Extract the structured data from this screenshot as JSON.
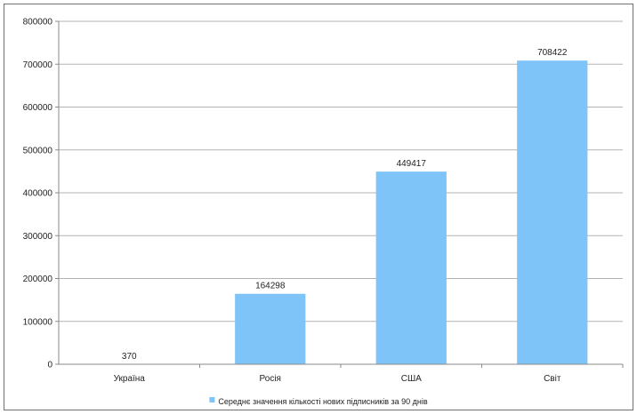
{
  "chart_data": {
    "type": "bar",
    "categories": [
      "Україна",
      "Росія",
      "США",
      "Світ"
    ],
    "series": [
      {
        "name": "Середнє значення кількості нових підписників за 90 днів",
        "values": [
          370,
          164298,
          449417,
          708422
        ]
      }
    ],
    "data_labels": [
      "370",
      "164298",
      "449417",
      "708422"
    ],
    "ylim": [
      0,
      800000
    ],
    "y_ticks": [
      0,
      100000,
      200000,
      300000,
      400000,
      500000,
      600000,
      700000,
      800000
    ],
    "y_tick_labels": [
      "0",
      "100000",
      "200000",
      "300000",
      "400000",
      "500000",
      "600000",
      "700000",
      "800000"
    ],
    "grid": true,
    "legend_position": "bottom",
    "bar_color": "#7fc4f8"
  }
}
